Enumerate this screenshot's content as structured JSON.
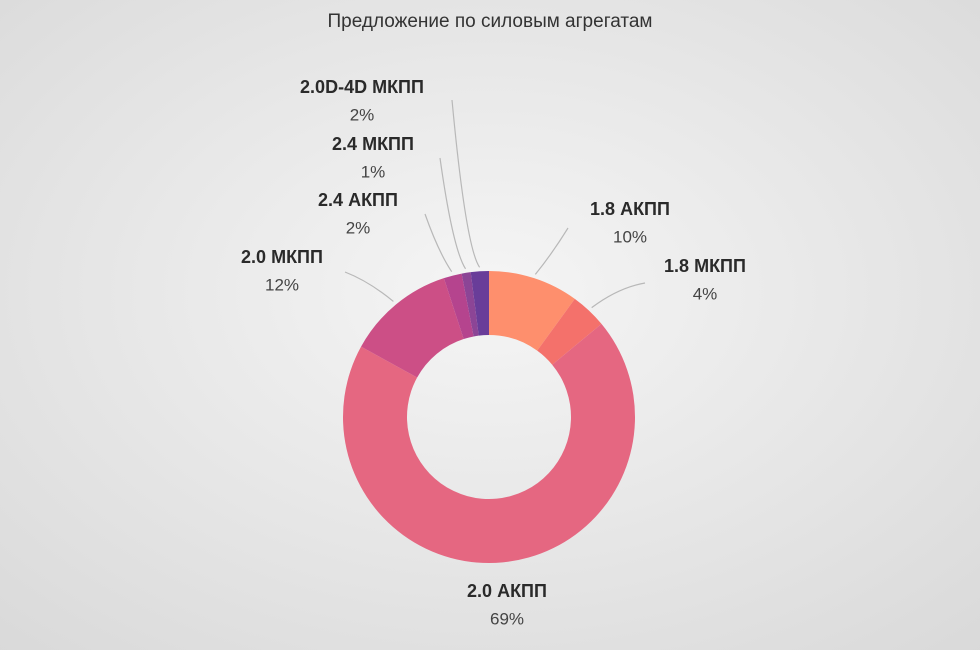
{
  "chart_data": {
    "type": "donut",
    "title": "Предложение по силовым агрегатам",
    "categories": [
      "1.8 АКПП",
      "1.8 МКПП",
      "2.0 АКПП",
      "2.0 МКПП",
      "2.4 АКПП",
      "2.4 МКПП",
      "2.0D-4D МКПП"
    ],
    "values": [
      10,
      4,
      69,
      12,
      2,
      1,
      2
    ],
    "value_labels": [
      "10%",
      "4%",
      "69%",
      "12%",
      "2%",
      "1%",
      "2%"
    ],
    "colors": [
      "#fe8f6d",
      "#f4716b",
      "#e56781",
      "#cc4f86",
      "#b5448e",
      "#8c4596",
      "#693d99"
    ]
  }
}
